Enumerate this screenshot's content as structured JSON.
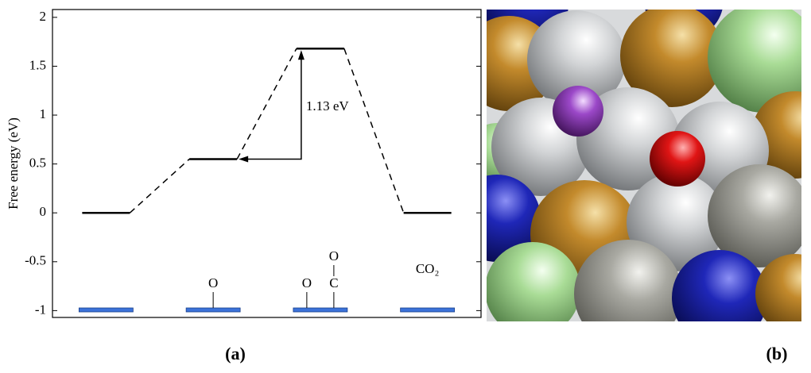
{
  "chart_data": {
    "type": "energy-profile",
    "y_label": "Free energy (eV)",
    "categories": [
      null,
      null,
      null,
      null
    ],
    "values": [
      0,
      0.55,
      1.68,
      0
    ],
    "color": "#000000",
    "surface_color": "#3b72d9",
    "ylim": [
      -1.07,
      2.08
    ],
    "yticks": [
      -1,
      -0.5,
      0,
      0.5,
      1,
      1.5,
      2
    ],
    "annotation": "1.13 eV",
    "adsorbates": [
      [],
      [
        "O"
      ],
      [
        "O",
        "C",
        "O"
      ],
      [
        "CO₂"
      ]
    ]
  },
  "panel_labels": [
    "(a)",
    "(b)"
  ]
}
